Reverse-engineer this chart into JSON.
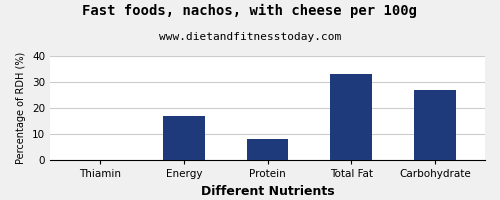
{
  "title": "Fast foods, nachos, with cheese per 100g",
  "subtitle": "www.dietandfitnesstoday.com",
  "xlabel": "Different Nutrients",
  "ylabel": "Percentage of RDH (%)",
  "categories": [
    "Thiamin",
    "Energy",
    "Protein",
    "Total Fat",
    "Carbohydrate"
  ],
  "values": [
    0,
    17,
    8,
    33,
    27
  ],
  "bar_color": "#1f3a7a",
  "ylim": [
    0,
    40
  ],
  "yticks": [
    0,
    10,
    20,
    30,
    40
  ],
  "background_color": "#f0f0f0",
  "plot_bg_color": "#ffffff",
  "title_fontsize": 10,
  "subtitle_fontsize": 8,
  "xlabel_fontsize": 9,
  "ylabel_fontsize": 7,
  "tick_fontsize": 7.5
}
